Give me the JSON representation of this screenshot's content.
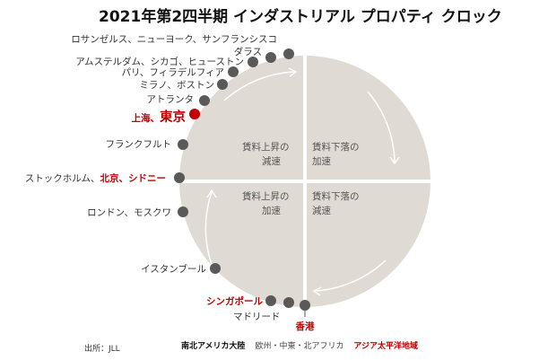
{
  "title": "2021年第2四半期 インダストリアル プロパティ クロック",
  "quadrants": {
    "top_left": [
      "賃料上昇の",
      "減速"
    ],
    "top_right": [
      "賃料下落の",
      "加速"
    ],
    "bottom_left": [
      "賃料上昇の",
      "加速"
    ],
    "bottom_right": [
      "賃料下落の",
      "減速"
    ]
  },
  "markets": {
    "la_ny_sf": "ロサンゼルス、ニューヨーク、サンフランシスコ",
    "dallas": "ダラス",
    "ams_chi_hou": "アムステルダム、シカゴ、ヒューストン",
    "paris_phi": "パリ、フィラデルフィア",
    "mil_bos": "ミラノ、ボストン",
    "atlanta": "アトランタ",
    "shanghai_prefix": "上海、",
    "tokyo": "東京",
    "frankfurt": "フランクフルト",
    "stockholm": "ストックホルム、",
    "beijing_sydney": "北京、シドニー",
    "london_moscow": "ロンドン、モスクワ",
    "istanbul": "イスタンブール",
    "singapore": "シンガポール",
    "madrid": "マドリード",
    "hongkong": "香港"
  },
  "source": "出所：JLL",
  "legend": {
    "americas": "南北アメリカ大陸",
    "emea": "欧州・中東・北アフリカ",
    "apac": "アジア太平洋地域"
  },
  "colors": {
    "circle": "#dfdad3",
    "marker": "#595959",
    "highlight": "#c00000",
    "americas": "#111111",
    "emea": "#444444",
    "apac": "#c00000"
  }
}
